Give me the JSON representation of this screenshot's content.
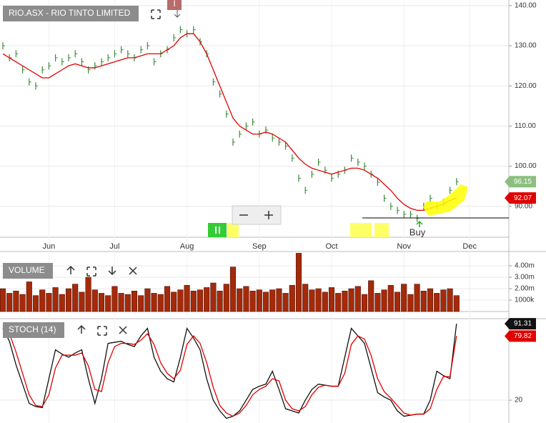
{
  "chart_data": [
    {
      "type": "stock",
      "title": "RIO.ASX - RIO TINTO LIMITED",
      "categories": [
        null,
        null,
        null,
        null,
        null,
        null,
        null,
        "Jun",
        null,
        null,
        null,
        null,
        null,
        null,
        null,
        null,
        null,
        "Jul",
        null,
        null,
        null,
        null,
        null,
        null,
        null,
        null,
        null,
        null,
        "Aug",
        null,
        null,
        null,
        null,
        null,
        null,
        null,
        null,
        null,
        null,
        "Sep",
        null,
        null,
        null,
        null,
        null,
        null,
        null,
        null,
        null,
        null,
        "Oct",
        null,
        null,
        null,
        null,
        null,
        null,
        null,
        null,
        null,
        null,
        "Nov",
        null,
        null,
        null,
        null,
        null,
        null,
        null,
        null,
        null,
        "Dec",
        null,
        null,
        null,
        null,
        null
      ],
      "series": [
        {
          "color": "#3a8a3a",
          "values": [
            130,
            127,
            128,
            124,
            121,
            120,
            124,
            125,
            127,
            126,
            127,
            128,
            126,
            124,
            125,
            126,
            127,
            128,
            129,
            128,
            127,
            129,
            130,
            126,
            128,
            129,
            132,
            134,
            133,
            134,
            131,
            128,
            121,
            118,
            113,
            106,
            108,
            110,
            111,
            108,
            109,
            107,
            106,
            105,
            102,
            97,
            94,
            98,
            101,
            99,
            97,
            98,
            99,
            102,
            101,
            100,
            98,
            96,
            92,
            90,
            89,
            88,
            88,
            87,
            90,
            92,
            90,
            91,
            94,
            96.15,
            null,
            null,
            null,
            null,
            null,
            null,
            null
          ]
        },
        {
          "color": "#e00000",
          "values": [
            128,
            127,
            126,
            125,
            124,
            123,
            122,
            122,
            123,
            124,
            125,
            125.5,
            125,
            124.5,
            124.5,
            125,
            125.5,
            126,
            126.5,
            127,
            127,
            127.5,
            128,
            128,
            128,
            129,
            130,
            132,
            133,
            133,
            131,
            128,
            124,
            120,
            116,
            112,
            110,
            109,
            108,
            108,
            108.5,
            108,
            107,
            106,
            104,
            102,
            100.5,
            99.5,
            99,
            98.5,
            98,
            98.5,
            99,
            99.5,
            99.5,
            99,
            98,
            97,
            95.5,
            94,
            92,
            90.5,
            89.5,
            89,
            89,
            89.5,
            90,
            90.5,
            91.5,
            92.07,
            null,
            null,
            null,
            null,
            null,
            null,
            null
          ]
        }
      ],
      "ylim": [
        82.3,
        141.4
      ],
      "yticks": [
        {
          "value": 90,
          "label": "90.00"
        },
        {
          "value": 100,
          "label": "100.00"
        },
        {
          "value": 110,
          "label": "110.00"
        },
        {
          "value": 120,
          "label": "120.00"
        },
        {
          "value": 130,
          "label": "130.00"
        },
        {
          "value": 140,
          "label": "140.00"
        }
      ],
      "grid": true,
      "event_label": "I",
      "signal_label": "Buy"
    },
    {
      "type": "bar",
      "title": "VOLUME",
      "color": "#a52a0a",
      "values": [
        2.0,
        1.6,
        1.8,
        1.5,
        2.6,
        1.4,
        1.9,
        1.6,
        2.1,
        1.5,
        2.0,
        2.4,
        1.7,
        3.0,
        1.9,
        1.6,
        1.4,
        2.2,
        1.6,
        1.5,
        1.8,
        1.4,
        2.0,
        1.6,
        1.5,
        2.2,
        1.7,
        1.9,
        2.3,
        1.8,
        1.9,
        2.1,
        2.5,
        1.8,
        2.4,
        3.9,
        2.0,
        2.2,
        1.8,
        1.9,
        1.7,
        1.9,
        2.0,
        1.6,
        2.3,
        5.1,
        2.4,
        1.9,
        2.0,
        1.7,
        2.1,
        1.6,
        1.8,
        2.0,
        2.2,
        1.5,
        2.7,
        1.6,
        1.9,
        2.3,
        1.7,
        2.4,
        1.5,
        2.4,
        1.8,
        2.0,
        1.6,
        1.9,
        2.0,
        1.4,
        null,
        null,
        null,
        null,
        null,
        null,
        null
      ],
      "ylim": [
        0,
        5.25
      ],
      "yticks": [
        {
          "value": 1,
          "label": "1000k"
        },
        {
          "value": 2,
          "label": "2.00m"
        },
        {
          "value": 3,
          "label": "3.00m"
        },
        {
          "value": 4,
          "label": "4.00m"
        }
      ],
      "grid": true
    },
    {
      "type": "line",
      "title": "STOCH (14)",
      "series": [
        {
          "color": "#111111",
          "values": [
            87,
            75,
            53,
            35,
            17,
            14,
            13,
            40,
            67,
            63,
            60,
            64,
            67,
            40,
            17,
            40,
            73,
            74,
            75,
            72,
            70,
            80,
            87,
            60,
            47,
            40,
            37,
            60,
            87,
            78,
            67,
            40,
            20,
            10,
            3,
            5,
            10,
            20,
            30,
            33,
            35,
            47,
            30,
            12,
            10,
            8,
            20,
            30,
            35,
            34,
            33,
            33,
            60,
            87,
            80,
            73,
            50,
            27,
            23,
            20,
            10,
            5,
            6,
            7,
            7,
            20,
            47,
            43,
            40,
            91.31,
            null,
            null,
            null,
            null,
            null,
            null,
            null
          ]
        },
        {
          "color": "#e00000",
          "values": [
            90,
            82,
            65,
            45,
            25,
            15,
            14,
            25,
            50,
            62,
            62,
            62,
            64,
            52,
            30,
            28,
            55,
            70,
            73,
            73,
            72,
            76,
            82,
            72,
            55,
            45,
            40,
            48,
            72,
            80,
            73,
            55,
            32,
            15,
            8,
            5,
            8,
            15,
            25,
            30,
            33,
            40,
            38,
            20,
            12,
            10,
            14,
            25,
            32,
            34,
            33,
            33,
            45,
            72,
            80,
            77,
            62,
            40,
            28,
            22,
            15,
            8,
            6,
            7,
            7,
            12,
            30,
            42,
            42,
            79.82,
            null,
            null,
            null,
            null,
            null,
            null,
            null
          ]
        }
      ],
      "ylim": [
        -1.3,
        94.7
      ],
      "yticks": [
        20
      ],
      "grid": true
    }
  ]
}
